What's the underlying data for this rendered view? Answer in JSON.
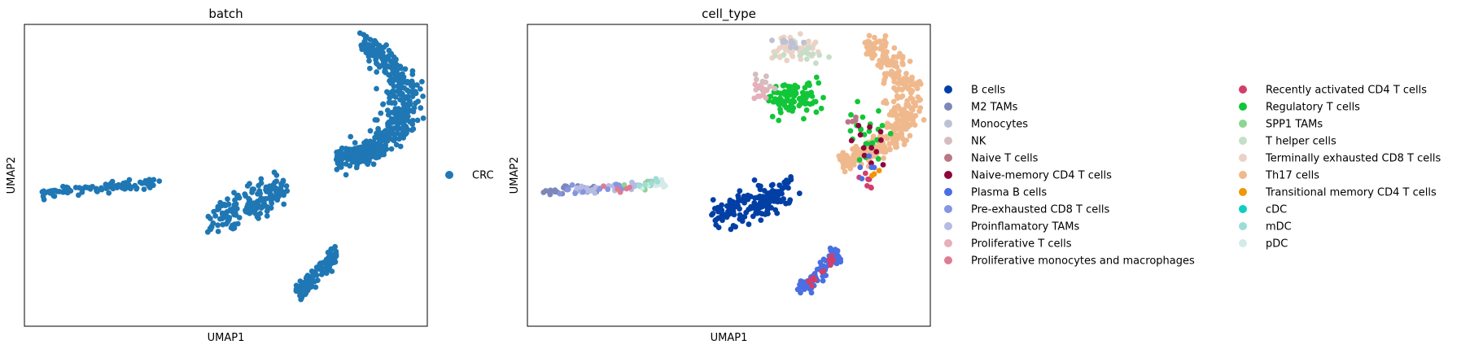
{
  "chart_data": [
    {
      "type": "scatter",
      "title": "batch",
      "xlabel": "UMAP1",
      "ylabel": "UMAP2",
      "xlim": [
        -8,
        9
      ],
      "ylim": [
        -9,
        9
      ],
      "grid": false,
      "legend_position": "right",
      "legend": [
        {
          "name": "CRC",
          "color": "#1f77b4"
        }
      ],
      "clusters": [
        {
          "category": "CRC",
          "shape": "arc",
          "n": 520,
          "center": [
            5.2,
            3.6
          ],
          "radii": [
            2.6,
            4.6
          ],
          "angle_range": [
            -1.6,
            1.25
          ],
          "thickness": 0.55
        },
        {
          "category": "CRC",
          "shape": "line",
          "n": 95,
          "from": [
            -7.3,
            -1.0
          ],
          "to": [
            -2.3,
            -0.5
          ],
          "thickness": 0.15
        },
        {
          "category": "CRC",
          "shape": "line",
          "n": 170,
          "from": [
            0.0,
            -2.6
          ],
          "to": [
            3.0,
            -0.8
          ],
          "thickness": 0.5
        },
        {
          "category": "CRC",
          "shape": "line",
          "n": 95,
          "from": [
            3.5,
            -7.0
          ],
          "to": [
            5.2,
            -4.6
          ],
          "thickness": 0.3
        }
      ]
    },
    {
      "type": "scatter",
      "title": "cell_type",
      "xlabel": "UMAP1",
      "ylabel": "UMAP2",
      "xlim": [
        -8,
        9
      ],
      "ylim": [
        -9,
        9
      ],
      "grid": false,
      "legend_position": "right, two columns",
      "legend": [
        {
          "name": "B cells",
          "color": "#023fa5"
        },
        {
          "name": "M2 TAMs",
          "color": "#7d87b9"
        },
        {
          "name": "Monocytes",
          "color": "#bec1d4"
        },
        {
          "name": "NK",
          "color": "#d6bcc0"
        },
        {
          "name": "Naive T cells",
          "color": "#bb7784"
        },
        {
          "name": "Naive-memory CD4 T cells",
          "color": "#8e063b"
        },
        {
          "name": "Plasma B cells",
          "color": "#4a6fe3"
        },
        {
          "name": "Pre-exhausted CD8 T cells",
          "color": "#8595e1"
        },
        {
          "name": "Proinflamatory TAMs",
          "color": "#b5bbe3"
        },
        {
          "name": "Proliferative T cells",
          "color": "#e6afb9"
        },
        {
          "name": "Proliferative monocytes and macrophages",
          "color": "#e07b91"
        },
        {
          "name": "Recently activated CD4 T cells",
          "color": "#d33f6a"
        },
        {
          "name": "Regulatory T cells",
          "color": "#11c638"
        },
        {
          "name": "SPP1 TAMs",
          "color": "#8dd593"
        },
        {
          "name": "T helper cells",
          "color": "#c6dec7"
        },
        {
          "name": "Terminally exhausted CD8 T cells",
          "color": "#ead3c6"
        },
        {
          "name": "Th17 cells",
          "color": "#f0b98d"
        },
        {
          "name": "Transitional memory CD4 T cells",
          "color": "#ef9708"
        },
        {
          "name": "cDC",
          "color": "#0fcfc0"
        },
        {
          "name": "mDC",
          "color": "#9cded6"
        },
        {
          "name": "pDC",
          "color": "#d5eae7"
        }
      ],
      "clusters": [
        {
          "category": "Th17 cells",
          "shape": "arc",
          "n": 360,
          "center": [
            5.2,
            3.6
          ],
          "radii": [
            2.6,
            4.6
          ],
          "angle_range": [
            -1.6,
            1.25
          ],
          "thickness": 0.55
        },
        {
          "category": "Regulatory T cells",
          "shape": "blob",
          "n": 95,
          "center": [
            3.3,
            4.6
          ],
          "spread": [
            1.2,
            1.0
          ]
        },
        {
          "category": "Regulatory T cells",
          "shape": "blob",
          "n": 22,
          "center": [
            6.3,
            2.5
          ],
          "spread": [
            0.8,
            1.6
          ]
        },
        {
          "category": "Terminally exhausted CD8 T cells",
          "shape": "blob",
          "n": 45,
          "center": [
            3.2,
            7.6
          ],
          "spread": [
            1.0,
            0.7
          ]
        },
        {
          "category": "T helper cells",
          "shape": "blob",
          "n": 15,
          "center": [
            3.8,
            7.2
          ],
          "spread": [
            0.9,
            0.6
          ]
        },
        {
          "category": "Monocytes",
          "shape": "blob",
          "n": 10,
          "center": [
            2.9,
            8.1
          ],
          "spread": [
            0.6,
            0.4
          ]
        },
        {
          "category": "NK",
          "shape": "blob",
          "n": 14,
          "center": [
            2.0,
            5.4
          ],
          "spread": [
            0.5,
            0.8
          ]
        },
        {
          "category": "Proliferative T cells",
          "shape": "blob",
          "n": 10,
          "center": [
            1.8,
            4.9
          ],
          "spread": [
            0.4,
            0.6
          ]
        },
        {
          "category": "Naive-memory CD4 T cells",
          "shape": "blob",
          "n": 12,
          "center": [
            6.4,
            1.8
          ],
          "spread": [
            0.7,
            1.6
          ]
        },
        {
          "category": "Naive T cells",
          "shape": "blob",
          "n": 4,
          "center": [
            5.6,
            3.5
          ],
          "spread": [
            0.4,
            0.4
          ]
        },
        {
          "category": "Recently activated CD4 T cells",
          "shape": "blob",
          "n": 8,
          "center": [
            6.3,
            -0.4
          ],
          "spread": [
            0.3,
            0.6
          ]
        },
        {
          "category": "Transitional memory CD4 T cells",
          "shape": "blob",
          "n": 3,
          "center": [
            6.6,
            0.2
          ],
          "spread": [
            0.3,
            0.4
          ]
        },
        {
          "category": "Plasma B cells",
          "shape": "blob",
          "n": 5,
          "center": [
            6.4,
            0.0
          ],
          "spread": [
            0.4,
            0.8
          ]
        },
        {
          "category": "B cells",
          "shape": "line",
          "n": 170,
          "from": [
            0.0,
            -2.6
          ],
          "to": [
            3.0,
            -0.8
          ],
          "thickness": 0.5
        },
        {
          "category": "M2 TAMs",
          "shape": "line",
          "n": 30,
          "from": [
            -7.3,
            -1.0
          ],
          "to": [
            -5.0,
            -0.8
          ],
          "thickness": 0.15
        },
        {
          "category": "Proinflamatory TAMs",
          "shape": "line",
          "n": 35,
          "from": [
            -6.0,
            -0.9
          ],
          "to": [
            -2.6,
            -0.5
          ],
          "thickness": 0.15
        },
        {
          "category": "SPP1 TAMs",
          "shape": "line",
          "n": 12,
          "from": [
            -4.5,
            -0.8
          ],
          "to": [
            -2.3,
            -0.4
          ],
          "thickness": 0.15
        },
        {
          "category": "pDC",
          "shape": "line",
          "n": 10,
          "from": [
            -3.2,
            -0.7
          ],
          "to": [
            -2.2,
            -0.4
          ],
          "thickness": 0.15
        },
        {
          "category": "mDC",
          "shape": "line",
          "n": 5,
          "from": [
            -3.4,
            -0.6
          ],
          "to": [
            -2.5,
            -0.3
          ],
          "thickness": 0.15
        },
        {
          "category": "Pre-exhausted CD8 T cells",
          "shape": "line",
          "n": 12,
          "from": [
            -6.8,
            -0.9
          ],
          "to": [
            -4.0,
            -0.7
          ],
          "thickness": 0.15
        },
        {
          "category": "Proliferative monocytes and macrophages",
          "shape": "line",
          "n": 5,
          "from": [
            -5.0,
            -0.8
          ],
          "to": [
            -3.5,
            -0.6
          ],
          "thickness": 0.15
        },
        {
          "category": "Plasma B cells",
          "shape": "line",
          "n": 85,
          "from": [
            3.5,
            -7.0
          ],
          "to": [
            5.2,
            -4.6
          ],
          "thickness": 0.3
        },
        {
          "category": "Recently activated CD4 T cells",
          "shape": "line",
          "n": 12,
          "from": [
            4.0,
            -6.4
          ],
          "to": [
            4.9,
            -4.8
          ],
          "thickness": 0.2
        }
      ]
    }
  ]
}
